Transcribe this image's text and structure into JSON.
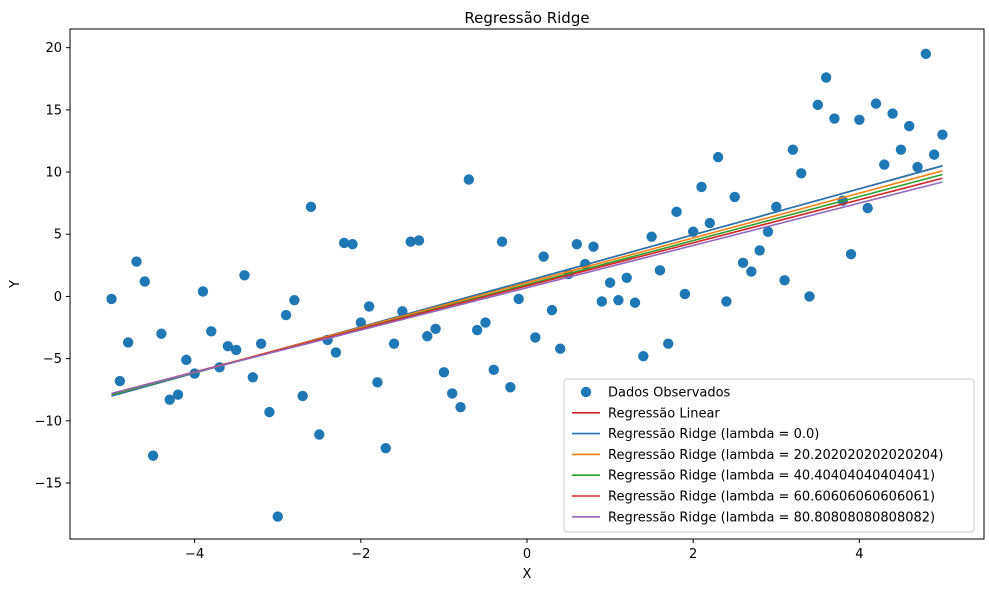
{
  "chart_data": {
    "type": "scatter",
    "title": "Regressão Ridge",
    "xlabel": "X",
    "ylabel": "Y",
    "xlim": [
      -5.5,
      5.5
    ],
    "ylim": [
      -19.5,
      21.5
    ],
    "xticks": [
      -4,
      -2,
      0,
      2,
      4
    ],
    "xtick_labels": [
      "−4",
      "−2",
      "0",
      "2",
      "4"
    ],
    "yticks": [
      -15,
      -10,
      -5,
      0,
      5,
      10,
      15,
      20
    ],
    "ytick_labels": [
      "−15",
      "−10",
      "−5",
      "0",
      "5",
      "10",
      "15",
      "20"
    ],
    "grid": false,
    "legend_position": "bottom-right",
    "scatter": {
      "name": "Dados Observados",
      "color": "#1f77b4",
      "points": [
        [
          -5.0,
          -0.2
        ],
        [
          -4.9,
          -6.8
        ],
        [
          -4.8,
          -3.7
        ],
        [
          -4.7,
          2.8
        ],
        [
          -4.6,
          1.2
        ],
        [
          -4.5,
          -12.8
        ],
        [
          -4.4,
          -3.0
        ],
        [
          -4.3,
          -8.3
        ],
        [
          -4.2,
          -7.9
        ],
        [
          -4.1,
          -5.1
        ],
        [
          -4.0,
          -6.2
        ],
        [
          -3.9,
          0.4
        ],
        [
          -3.8,
          -2.8
        ],
        [
          -3.7,
          -5.7
        ],
        [
          -3.6,
          -4.0
        ],
        [
          -3.5,
          -4.3
        ],
        [
          -3.4,
          1.7
        ],
        [
          -3.3,
          -6.5
        ],
        [
          -3.2,
          -3.8
        ],
        [
          -3.1,
          -9.3
        ],
        [
          -3.0,
          -17.7
        ],
        [
          -2.9,
          -1.5
        ],
        [
          -2.8,
          -0.3
        ],
        [
          -2.7,
          -8.0
        ],
        [
          -2.6,
          7.2
        ],
        [
          -2.5,
          -11.1
        ],
        [
          -2.4,
          -3.5
        ],
        [
          -2.3,
          -4.5
        ],
        [
          -2.2,
          4.3
        ],
        [
          -2.1,
          4.2
        ],
        [
          -2.0,
          -2.1
        ],
        [
          -1.9,
          -0.8
        ],
        [
          -1.8,
          -6.9
        ],
        [
          -1.7,
          -12.2
        ],
        [
          -1.6,
          -3.8
        ],
        [
          -1.5,
          -1.2
        ],
        [
          -1.4,
          4.4
        ],
        [
          -1.3,
          4.5
        ],
        [
          -1.2,
          -3.2
        ],
        [
          -1.1,
          -2.6
        ],
        [
          -1.0,
          -6.1
        ],
        [
          -0.9,
          -7.8
        ],
        [
          -0.8,
          -8.9
        ],
        [
          -0.7,
          9.4
        ],
        [
          -0.6,
          -2.7
        ],
        [
          -0.5,
          -2.1
        ],
        [
          -0.4,
          -5.9
        ],
        [
          -0.3,
          4.4
        ],
        [
          -0.2,
          -7.3
        ],
        [
          -0.1,
          -0.2
        ],
        [
          0.1,
          -3.3
        ],
        [
          0.2,
          3.2
        ],
        [
          0.3,
          -1.1
        ],
        [
          0.4,
          -4.2
        ],
        [
          0.5,
          1.8
        ],
        [
          0.6,
          4.2
        ],
        [
          0.7,
          2.6
        ],
        [
          0.8,
          4.0
        ],
        [
          0.9,
          -0.4
        ],
        [
          1.0,
          1.1
        ],
        [
          1.1,
          -0.3
        ],
        [
          1.2,
          1.5
        ],
        [
          1.3,
          -0.5
        ],
        [
          1.4,
          -4.8
        ],
        [
          1.5,
          4.8
        ],
        [
          1.6,
          2.1
        ],
        [
          1.7,
          -3.8
        ],
        [
          1.8,
          6.8
        ],
        [
          1.9,
          0.2
        ],
        [
          2.0,
          5.2
        ],
        [
          2.1,
          8.8
        ],
        [
          2.2,
          5.9
        ],
        [
          2.3,
          11.2
        ],
        [
          2.4,
          -0.4
        ],
        [
          2.5,
          8.0
        ],
        [
          2.6,
          2.7
        ],
        [
          2.7,
          2.0
        ],
        [
          2.8,
          3.7
        ],
        [
          2.9,
          5.2
        ],
        [
          3.0,
          7.2
        ],
        [
          3.1,
          1.3
        ],
        [
          3.2,
          11.8
        ],
        [
          3.3,
          9.9
        ],
        [
          3.4,
          0.0
        ],
        [
          3.5,
          15.4
        ],
        [
          3.6,
          17.6
        ],
        [
          3.7,
          14.3
        ],
        [
          3.8,
          7.7
        ],
        [
          3.9,
          3.4
        ],
        [
          4.0,
          14.2
        ],
        [
          4.1,
          7.1
        ],
        [
          4.2,
          15.5
        ],
        [
          4.3,
          10.6
        ],
        [
          4.4,
          14.7
        ],
        [
          4.5,
          11.8
        ],
        [
          4.6,
          13.7
        ],
        [
          4.7,
          10.4
        ],
        [
          4.8,
          19.5
        ],
        [
          4.9,
          11.4
        ],
        [
          5.0,
          13.0
        ]
      ]
    },
    "series": [
      {
        "name": "Regressão Linear",
        "color": "#d62728",
        "x": [
          -5.0,
          5.0
        ],
        "y": [
          -8.0,
          10.5
        ]
      },
      {
        "name": "Regressão Ridge (lambda = 0.0)",
        "color": "#1f77b4",
        "x": [
          -5.0,
          5.0
        ],
        "y": [
          -8.0,
          10.5
        ]
      },
      {
        "name": "Regressão Ridge (lambda = 20.202020202020204)",
        "color": "#ff7f0e",
        "x": [
          -5.0,
          5.0
        ],
        "y": [
          -7.9,
          10.1
        ]
      },
      {
        "name": "Regressão Ridge (lambda = 40.40404040404041)",
        "color": "#2ca02c",
        "x": [
          -5.0,
          5.0
        ],
        "y": [
          -7.9,
          9.8
        ]
      },
      {
        "name": "Regressão Ridge (lambda = 60.60606060606061)",
        "color": "#d62728",
        "x": [
          -5.0,
          5.0
        ],
        "y": [
          -7.8,
          9.5
        ]
      },
      {
        "name": "Regressão Ridge (lambda = 80.80808080808082)",
        "color": "#9467bd",
        "x": [
          -5.0,
          5.0
        ],
        "y": [
          -7.8,
          9.2
        ]
      }
    ]
  }
}
